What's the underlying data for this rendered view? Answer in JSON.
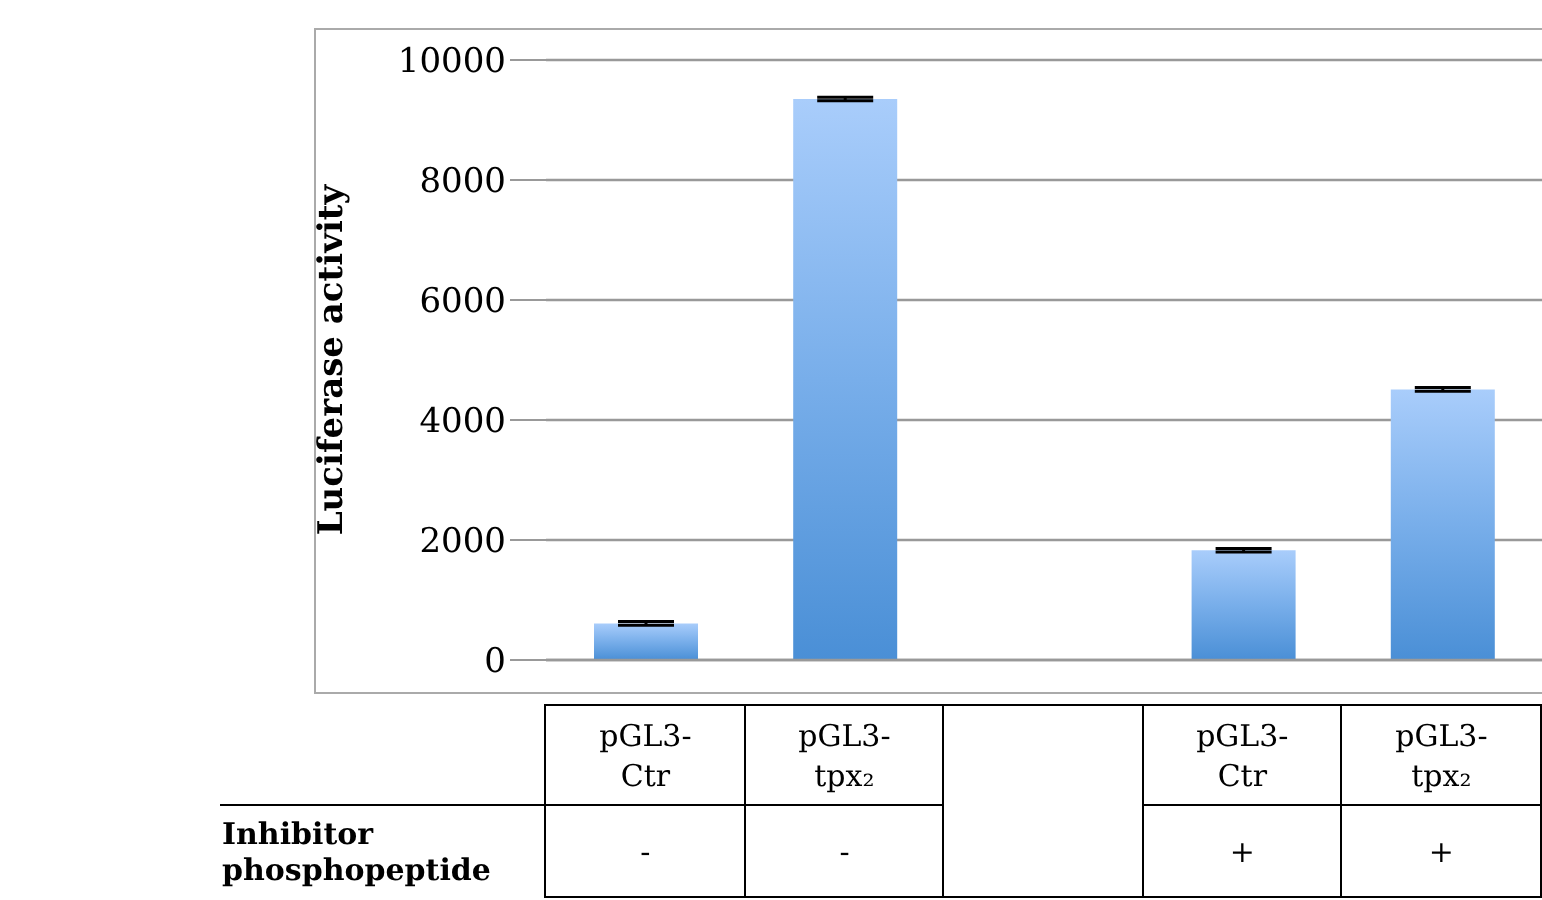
{
  "chart_data": {
    "type": "bar",
    "ylabel": "Luciferase activity",
    "categories": [
      "pGL3-Ctr",
      "pGL3-tpx₂",
      null,
      "pGL3-Ctr",
      "pGL3-tpx₂"
    ],
    "values": [
      610,
      9350,
      null,
      1830,
      4510
    ],
    "errors": [
      30,
      30,
      null,
      30,
      30
    ],
    "color": "#78aeea",
    "ylim": [
      0,
      10000
    ],
    "yticks": [
      0,
      2000,
      4000,
      6000,
      8000,
      10000
    ],
    "grid": "y",
    "annotations": [
      "Inhibitor phosphopeptide",
      "-",
      "-",
      "+",
      "+"
    ]
  }
}
